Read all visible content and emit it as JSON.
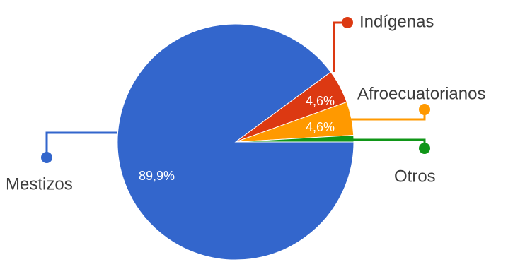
{
  "chart_data": {
    "type": "pie",
    "title": "",
    "slices": [
      {
        "label": "Mestizos",
        "value": 89.9,
        "display": "89,9%",
        "color": "#3366cc"
      },
      {
        "label": "Indígenas",
        "value": 4.6,
        "display": "4,6%",
        "color": "#dc3912"
      },
      {
        "label": "Afroecuatorianos",
        "value": 4.6,
        "display": "4,6%",
        "color": "#ff9900"
      },
      {
        "label": "Otros",
        "value": 0.9,
        "display": "",
        "color": "#109618"
      }
    ],
    "legend": "callouts"
  }
}
